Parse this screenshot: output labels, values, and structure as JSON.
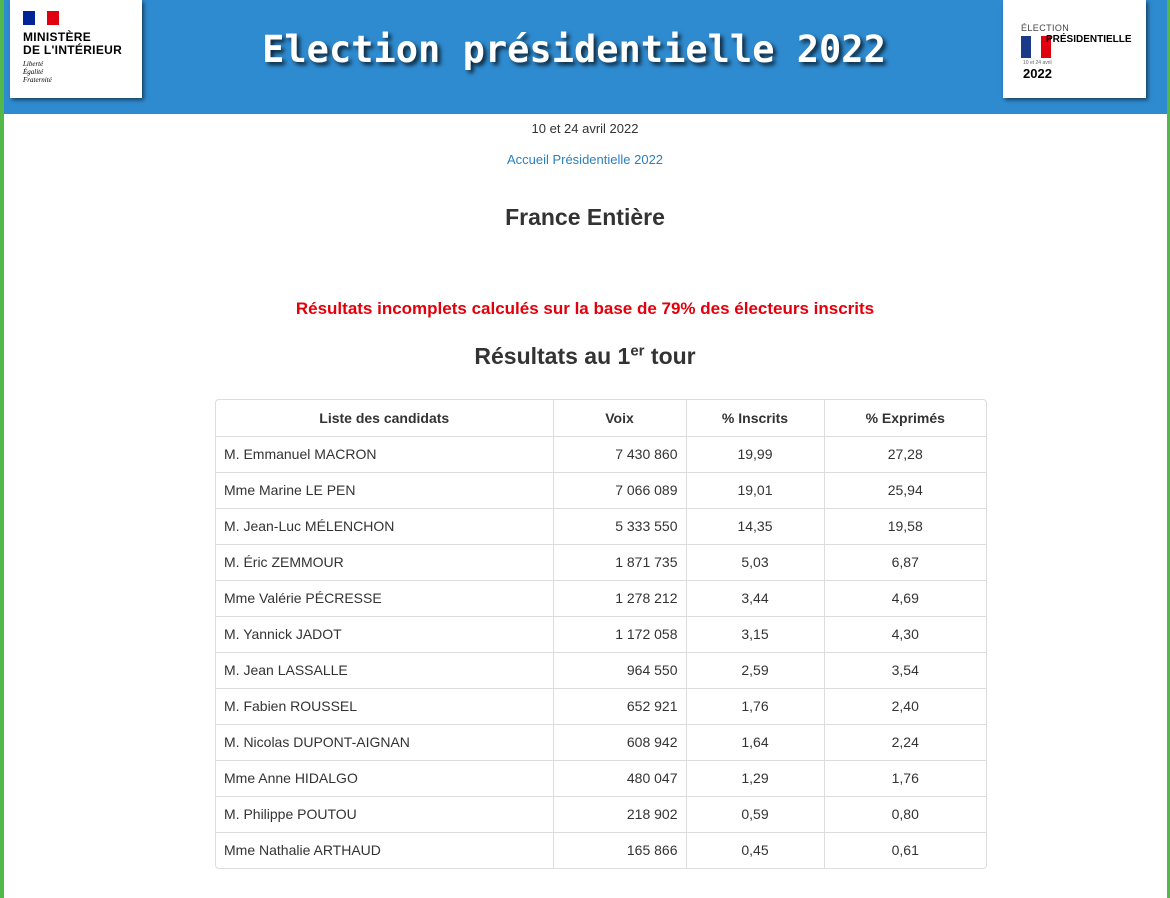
{
  "header": {
    "title": "Election présidentielle 2022",
    "ministry": {
      "line1": "MINISTÈRE",
      "line2": "DE L'INTÉRIEUR",
      "motto": [
        "Liberté",
        "Égalité",
        "Fraternité"
      ]
    },
    "election_logo": {
      "line1": "ÉLECTION",
      "line2": "PRÉSIDENTIELLE",
      "dates": "10 et 24 avril",
      "year": "2022"
    }
  },
  "dates": "10 et 24 avril 2022",
  "home_link": "Accueil Présidentielle 2022",
  "area_title": "France Entière",
  "warning": "Résultats incomplets calculés sur la base de 79% des électeurs inscrits",
  "round_title": {
    "pre": "Résultats au 1",
    "sup": "er",
    "post": " tour"
  },
  "table": {
    "headers": [
      "Liste des candidats",
      "Voix",
      "% Inscrits",
      "% Exprimés"
    ],
    "rows": [
      {
        "name": "M. Emmanuel MACRON",
        "voix": "7 430 860",
        "inscrits": "19,99",
        "exprimes": "27,28"
      },
      {
        "name": "Mme Marine LE PEN",
        "voix": "7 066 089",
        "inscrits": "19,01",
        "exprimes": "25,94"
      },
      {
        "name": "M. Jean-Luc MÉLENCHON",
        "voix": "5 333 550",
        "inscrits": "14,35",
        "exprimes": "19,58"
      },
      {
        "name": "M. Éric ZEMMOUR",
        "voix": "1 871 735",
        "inscrits": "5,03",
        "exprimes": "6,87"
      },
      {
        "name": "Mme Valérie PÉCRESSE",
        "voix": "1 278 212",
        "inscrits": "3,44",
        "exprimes": "4,69"
      },
      {
        "name": "M. Yannick JADOT",
        "voix": "1 172 058",
        "inscrits": "3,15",
        "exprimes": "4,30"
      },
      {
        "name": "M. Jean LASSALLE",
        "voix": "964 550",
        "inscrits": "2,59",
        "exprimes": "3,54"
      },
      {
        "name": "M. Fabien ROUSSEL",
        "voix": "652 921",
        "inscrits": "1,76",
        "exprimes": "2,40"
      },
      {
        "name": "M. Nicolas DUPONT-AIGNAN",
        "voix": "608 942",
        "inscrits": "1,64",
        "exprimes": "2,24"
      },
      {
        "name": "Mme Anne HIDALGO",
        "voix": "480 047",
        "inscrits": "1,29",
        "exprimes": "1,76"
      },
      {
        "name": "M. Philippe POUTOU",
        "voix": "218 902",
        "inscrits": "0,59",
        "exprimes": "0,80"
      },
      {
        "name": "Mme Nathalie ARTHAUD",
        "voix": "165 866",
        "inscrits": "0,45",
        "exprimes": "0,61"
      }
    ]
  },
  "colors": {
    "header_bg": "#2f8bd0",
    "link": "#2a80c0",
    "warning": "#e3000b",
    "window_edge": "#52b84a"
  }
}
